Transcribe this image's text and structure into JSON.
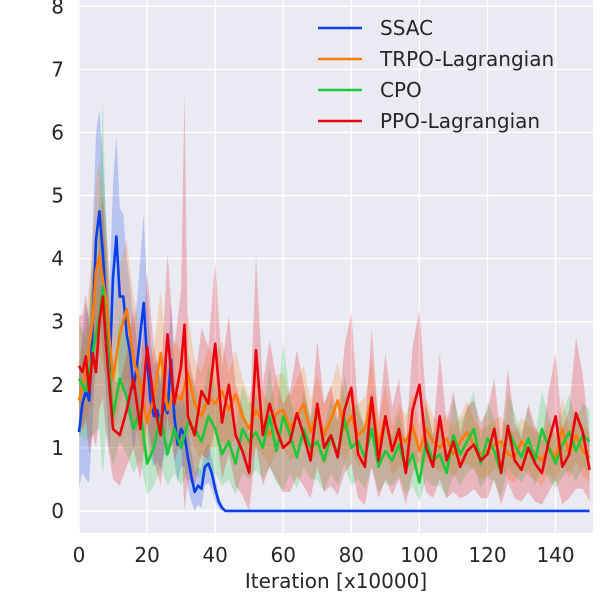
{
  "chart_data": {
    "type": "line",
    "title": "",
    "xlabel": "Iteration [x10000]",
    "ylabel": "",
    "xlim": [
      0,
      151
    ],
    "ylim": [
      -0.35,
      8.1
    ],
    "xticks": [
      0,
      20,
      40,
      60,
      80,
      100,
      120,
      140
    ],
    "yticks": [
      0,
      1,
      2,
      3,
      4,
      5,
      6,
      7,
      8
    ],
    "grid": true,
    "legend_position": "top-right",
    "background": "#eaeaf2",
    "series": [
      {
        "name": "SSAC",
        "color": "#0a3fe8",
        "x": [
          0,
          1,
          2,
          3,
          4,
          5,
          6,
          7,
          8,
          9,
          10,
          11,
          12,
          13,
          14,
          15,
          16,
          17,
          18,
          19,
          20,
          21,
          22,
          23,
          24,
          25,
          26,
          27,
          28,
          29,
          30,
          31,
          32,
          33,
          34,
          35,
          36,
          37,
          38,
          39,
          40,
          41,
          42,
          43,
          44,
          50,
          60,
          70,
          80,
          90,
          100,
          110,
          120,
          130,
          140,
          150
        ],
        "y": [
          1.25,
          1.7,
          1.9,
          1.75,
          2.9,
          4.3,
          4.75,
          4.1,
          3.2,
          2.2,
          3.7,
          4.35,
          3.4,
          3.4,
          2.8,
          2.5,
          1.95,
          2.3,
          2.8,
          3.3,
          2.4,
          1.75,
          1.5,
          1.6,
          1.35,
          1.7,
          1.55,
          2.4,
          1.5,
          1.05,
          1.3,
          1.2,
          0.85,
          0.55,
          0.3,
          0.4,
          0.35,
          0.7,
          0.75,
          0.6,
          0.35,
          0.15,
          0.05,
          0.0,
          0.0,
          0.0,
          0.0,
          0.0,
          0.0,
          0.0,
          0.0,
          0.0,
          0.0,
          0.0,
          0.0,
          0.0
        ],
        "band": [
          0.9,
          1.1,
          1.4,
          1.3,
          1.5,
          1.7,
          1.6,
          1.5,
          1.4,
          1.3,
          1.5,
          1.6,
          1.4,
          1.3,
          1.2,
          1.1,
          1.0,
          1.0,
          1.2,
          1.4,
          1.1,
          0.9,
          0.8,
          0.8,
          0.7,
          0.8,
          0.7,
          0.9,
          0.7,
          0.6,
          0.6,
          0.5,
          0.5,
          0.4,
          0.3,
          0.3,
          0.3,
          0.3,
          0.3,
          0.25,
          0.2,
          0.1,
          0.05,
          0.0,
          0.0,
          0.0,
          0.0,
          0.0,
          0.0,
          0.0,
          0.0,
          0.0,
          0.0,
          0.0,
          0.0,
          0.0
        ]
      },
      {
        "name": "TRPO-Lagrangian",
        "color": "#ff7c00",
        "x": [
          0,
          2,
          4,
          5,
          6,
          8,
          10,
          12,
          14,
          16,
          18,
          20,
          22,
          24,
          26,
          28,
          30,
          32,
          34,
          36,
          38,
          40,
          42,
          44,
          46,
          48,
          50,
          52,
          54,
          56,
          58,
          60,
          62,
          64,
          66,
          68,
          70,
          72,
          74,
          76,
          78,
          80,
          82,
          84,
          86,
          88,
          90,
          92,
          94,
          96,
          98,
          100,
          102,
          104,
          106,
          108,
          110,
          112,
          114,
          116,
          118,
          120,
          122,
          124,
          126,
          128,
          130,
          132,
          134,
          136,
          138,
          140,
          142,
          144,
          146,
          148,
          150
        ],
        "y": [
          1.75,
          2.2,
          3.0,
          3.8,
          4.05,
          3.3,
          2.1,
          2.8,
          3.2,
          2.4,
          2.0,
          1.4,
          1.8,
          2.5,
          1.6,
          1.9,
          1.75,
          2.2,
          1.7,
          1.5,
          1.8,
          1.7,
          1.9,
          1.6,
          1.85,
          1.5,
          1.3,
          1.6,
          1.4,
          1.2,
          1.55,
          1.6,
          1.3,
          1.5,
          1.7,
          1.25,
          1.55,
          1.2,
          1.45,
          1.75,
          1.3,
          1.5,
          1.2,
          1.3,
          1.8,
          1.05,
          1.5,
          0.95,
          1.2,
          1.1,
          1.35,
          0.95,
          1.3,
          1.1,
          1.0,
          1.15,
          0.9,
          1.1,
          1.25,
          1.05,
          0.9,
          0.95,
          1.05,
          1.1,
          0.9,
          0.85,
          1.1,
          0.95,
          0.9,
          0.8,
          1.0,
          0.85,
          1.3,
          0.9,
          1.2,
          0.95,
          0.85
        ],
        "band": [
          0.6,
          0.8,
          1.2,
          1.4,
          1.5,
          1.2,
          0.9,
          1.1,
          1.1,
          1.0,
          0.9,
          0.7,
          0.8,
          1.0,
          0.7,
          0.8,
          0.8,
          0.9,
          0.7,
          0.7,
          0.8,
          0.7,
          0.8,
          0.6,
          0.7,
          0.6,
          0.5,
          0.6,
          0.5,
          0.5,
          0.6,
          0.6,
          0.5,
          0.6,
          0.6,
          0.5,
          0.6,
          0.5,
          0.5,
          0.6,
          0.5,
          0.5,
          0.5,
          0.5,
          0.6,
          0.4,
          0.5,
          0.4,
          0.5,
          0.4,
          0.5,
          0.4,
          0.5,
          0.4,
          0.4,
          0.4,
          0.4,
          0.4,
          0.5,
          0.4,
          0.4,
          0.4,
          0.4,
          0.4,
          0.4,
          0.4,
          0.4,
          0.4,
          0.4,
          0.4,
          0.4,
          0.4,
          0.5,
          0.4,
          0.4,
          0.4,
          0.4
        ]
      },
      {
        "name": "CPO",
        "color": "#1ac938",
        "x": [
          0,
          2,
          4,
          6,
          7,
          8,
          10,
          12,
          14,
          16,
          18,
          20,
          22,
          24,
          26,
          28,
          30,
          32,
          34,
          36,
          38,
          40,
          42,
          44,
          46,
          48,
          50,
          52,
          54,
          56,
          58,
          60,
          62,
          64,
          66,
          68,
          70,
          72,
          74,
          76,
          78,
          80,
          82,
          84,
          86,
          88,
          90,
          92,
          94,
          96,
          98,
          100,
          102,
          104,
          106,
          108,
          110,
          112,
          114,
          116,
          118,
          120,
          122,
          124,
          126,
          128,
          130,
          132,
          134,
          136,
          138,
          140,
          142,
          144,
          146,
          148,
          150
        ],
        "y": [
          2.1,
          1.9,
          2.5,
          3.1,
          3.55,
          2.8,
          1.5,
          2.1,
          1.8,
          1.3,
          1.6,
          0.75,
          1.0,
          1.5,
          0.9,
          1.3,
          1.0,
          1.4,
          1.3,
          1.1,
          1.5,
          1.3,
          0.9,
          1.1,
          0.75,
          1.3,
          1.1,
          1.25,
          1.0,
          1.5,
          0.95,
          1.5,
          1.2,
          0.85,
          1.3,
          1.0,
          1.1,
          0.8,
          1.2,
          0.9,
          1.45,
          1.0,
          1.1,
          0.85,
          1.3,
          0.7,
          0.95,
          0.8,
          1.05,
          0.65,
          0.9,
          0.45,
          1.1,
          0.8,
          0.9,
          0.6,
          1.2,
          0.9,
          1.1,
          1.3,
          0.75,
          1.15,
          0.95,
          0.6,
          1.3,
          1.05,
          0.85,
          1.15,
          0.8,
          1.3,
          1.0,
          0.75,
          1.05,
          1.25,
          0.95,
          1.2,
          1.1
        ],
        "band": [
          0.9,
          0.8,
          1.3,
          1.8,
          3.0,
          1.5,
          0.8,
          1.0,
          0.9,
          0.7,
          0.8,
          0.5,
          0.6,
          0.8,
          0.5,
          0.7,
          0.6,
          0.8,
          0.7,
          0.6,
          0.8,
          0.7,
          0.5,
          0.6,
          0.5,
          0.7,
          0.6,
          0.6,
          0.5,
          0.8,
          0.5,
          1.2,
          0.6,
          0.5,
          0.6,
          0.5,
          0.6,
          0.5,
          0.6,
          0.5,
          0.7,
          0.6,
          0.6,
          0.5,
          0.6,
          0.4,
          0.5,
          0.4,
          0.5,
          0.4,
          0.5,
          0.3,
          0.6,
          0.4,
          0.5,
          0.4,
          0.6,
          0.5,
          0.5,
          0.6,
          0.4,
          0.6,
          0.5,
          0.4,
          0.6,
          0.5,
          0.4,
          0.5,
          0.4,
          0.6,
          0.5,
          0.4,
          0.5,
          0.6,
          0.5,
          0.5,
          0.5
        ]
      },
      {
        "name": "PPO-Lagrangian",
        "color": "#e8000b",
        "x": [
          0,
          1,
          2,
          3,
          4,
          5,
          6,
          7,
          8,
          10,
          12,
          14,
          16,
          18,
          20,
          22,
          24,
          26,
          28,
          30,
          31,
          32,
          34,
          36,
          38,
          40,
          42,
          44,
          46,
          48,
          50,
          52,
          54,
          56,
          58,
          60,
          62,
          64,
          66,
          68,
          70,
          72,
          74,
          76,
          78,
          80,
          82,
          84,
          86,
          88,
          90,
          92,
          94,
          96,
          98,
          100,
          102,
          104,
          106,
          108,
          110,
          112,
          114,
          116,
          118,
          120,
          122,
          124,
          126,
          128,
          130,
          132,
          134,
          136,
          138,
          140,
          142,
          144,
          146,
          148,
          150
        ],
        "y": [
          2.3,
          2.2,
          2.45,
          1.9,
          2.5,
          2.2,
          3.0,
          3.4,
          2.6,
          1.3,
          1.2,
          1.6,
          2.1,
          1.3,
          2.6,
          1.7,
          1.2,
          2.8,
          1.7,
          2.3,
          2.95,
          1.5,
          1.2,
          1.9,
          1.7,
          2.65,
          1.4,
          2.0,
          1.2,
          0.95,
          0.6,
          2.55,
          1.2,
          1.7,
          1.3,
          1.0,
          1.1,
          1.55,
          1.2,
          0.8,
          1.7,
          1.0,
          1.2,
          0.85,
          1.6,
          1.95,
          0.9,
          0.7,
          1.8,
          0.8,
          1.5,
          0.95,
          1.3,
          0.6,
          1.6,
          2.0,
          1.0,
          0.7,
          1.5,
          0.8,
          1.1,
          0.7,
          0.95,
          1.05,
          0.8,
          0.9,
          1.3,
          0.6,
          1.35,
          0.8,
          0.65,
          1.0,
          0.75,
          0.6,
          1.1,
          1.5,
          0.7,
          0.9,
          1.55,
          1.25,
          0.65
        ],
        "band": [
          0.8,
          0.9,
          1.0,
          1.0,
          1.3,
          1.2,
          1.4,
          1.6,
          1.4,
          0.8,
          0.8,
          0.9,
          1.1,
          0.8,
          1.2,
          0.9,
          0.8,
          1.3,
          0.9,
          1.2,
          3.7,
          1.0,
          0.8,
          1.0,
          0.9,
          1.3,
          0.9,
          1.1,
          0.8,
          0.7,
          0.6,
          1.5,
          0.8,
          1.0,
          0.8,
          0.7,
          0.8,
          1.0,
          0.8,
          0.6,
          1.0,
          0.7,
          0.8,
          0.6,
          1.0,
          1.2,
          0.7,
          0.6,
          1.1,
          0.6,
          1.0,
          0.7,
          0.8,
          0.5,
          1.0,
          1.2,
          0.7,
          0.5,
          1.0,
          0.6,
          0.8,
          0.5,
          0.7,
          0.7,
          0.6,
          0.7,
          0.8,
          0.5,
          0.9,
          0.6,
          0.5,
          0.7,
          0.6,
          0.5,
          0.8,
          1.0,
          0.6,
          0.7,
          1.2,
          0.9,
          0.5
        ]
      }
    ]
  }
}
